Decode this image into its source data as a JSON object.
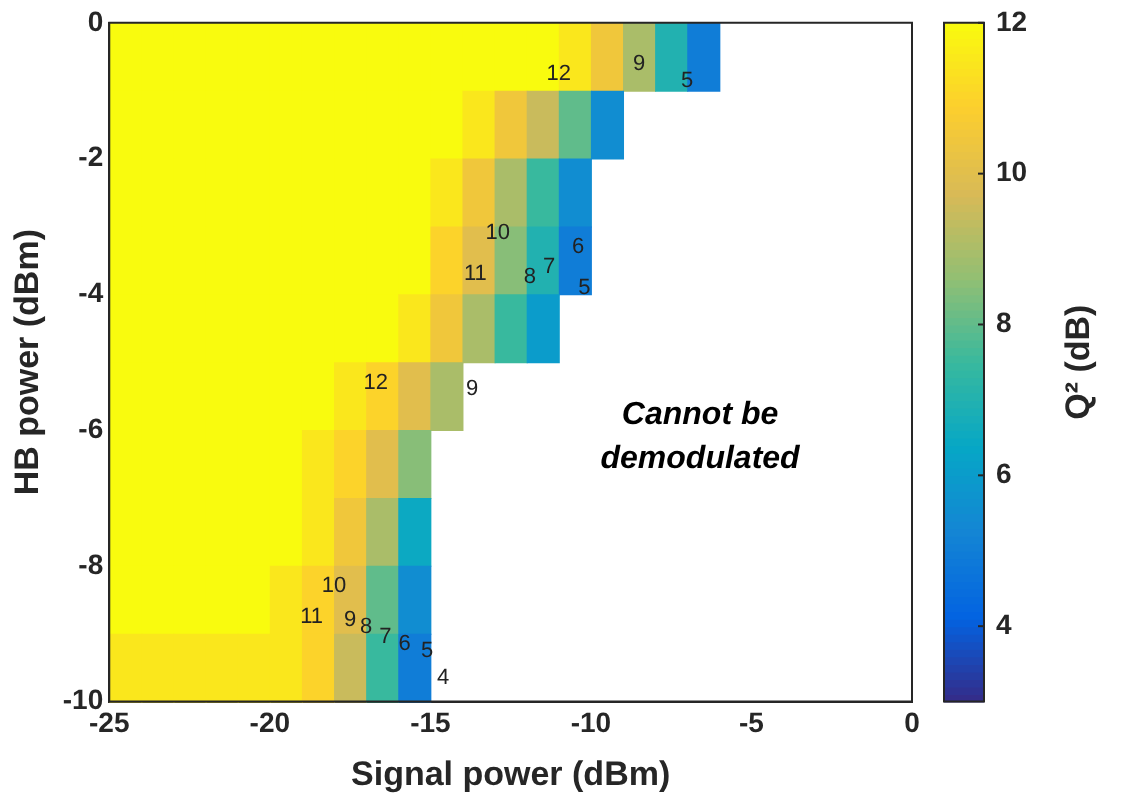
{
  "chart_data": {
    "type": "heatmap",
    "xlabel": "Signal power (dBm)",
    "ylabel": "HB power (dBm)",
    "clabel": "Q² (dB)",
    "xlim": [
      -25,
      0
    ],
    "ylim": [
      -10,
      0
    ],
    "xticks": [
      -25,
      -20,
      -15,
      -10,
      -5,
      0
    ],
    "yticks": [
      -10,
      -8,
      -6,
      -4,
      -2,
      0
    ],
    "clim": [
      3,
      12
    ],
    "cticks": [
      4,
      6,
      8,
      10,
      12
    ],
    "cells": [
      [
        12,
        12,
        12,
        12,
        12,
        12,
        12,
        12,
        12,
        12,
        12,
        12,
        12,
        12,
        11.5,
        10.5,
        9,
        7,
        5,
        null,
        null,
        null,
        null,
        null,
        null
      ],
      [
        12,
        12,
        12,
        12,
        12,
        12,
        12,
        12,
        12,
        12,
        12,
        11.5,
        10.5,
        9.5,
        8,
        5.5,
        null,
        null,
        null,
        null,
        null,
        null,
        null,
        null,
        null
      ],
      [
        12,
        12,
        12,
        12,
        12,
        12,
        12,
        12,
        12,
        12,
        11.5,
        10.5,
        9,
        7.5,
        5.5,
        null,
        null,
        null,
        null,
        null,
        null,
        null,
        null,
        null,
        null
      ],
      [
        12,
        12,
        12,
        12,
        12,
        12,
        12,
        12,
        12,
        12,
        11,
        10,
        8.5,
        7,
        5,
        null,
        null,
        null,
        null,
        null,
        null,
        null,
        null,
        null,
        null
      ],
      [
        12,
        12,
        12,
        12,
        12,
        12,
        12,
        12,
        12,
        11.5,
        10.5,
        9,
        7.5,
        6,
        null,
        null,
        null,
        null,
        null,
        null,
        null,
        null,
        null,
        null,
        null
      ],
      [
        12,
        12,
        12,
        12,
        12,
        12,
        12,
        11.5,
        11,
        10,
        9,
        null,
        null,
        null,
        null,
        null,
        null,
        null,
        null,
        null,
        null,
        null,
        null,
        null,
        null
      ],
      [
        12,
        12,
        12,
        12,
        12,
        12,
        11.5,
        11,
        10,
        8.5,
        null,
        null,
        null,
        null,
        null,
        null,
        null,
        null,
        null,
        null,
        null,
        null,
        null,
        null,
        null
      ],
      [
        12,
        12,
        12,
        12,
        12,
        12,
        11.5,
        10.5,
        9,
        6.5,
        null,
        null,
        null,
        null,
        null,
        null,
        null,
        null,
        null,
        null,
        null,
        null,
        null,
        null,
        null
      ],
      [
        12,
        12,
        12,
        12,
        12,
        11.5,
        11,
        10,
        8,
        5.5,
        null,
        null,
        null,
        null,
        null,
        null,
        null,
        null,
        null,
        null,
        null,
        null,
        null,
        null,
        null
      ],
      [
        11.5,
        11.5,
        11.5,
        11.5,
        11.5,
        11.5,
        11,
        9.5,
        7.5,
        5,
        null,
        null,
        null,
        null,
        null,
        null,
        null,
        null,
        null,
        null,
        null,
        null,
        null,
        null,
        null
      ]
    ],
    "annotations": [
      "12",
      "9",
      "5",
      "10",
      "11",
      "8",
      "7",
      "6",
      "5",
      "12",
      "9",
      "10",
      "11",
      "9",
      "8",
      "7",
      "6",
      "5",
      "4",
      "Cannot be demodulated"
    ]
  }
}
